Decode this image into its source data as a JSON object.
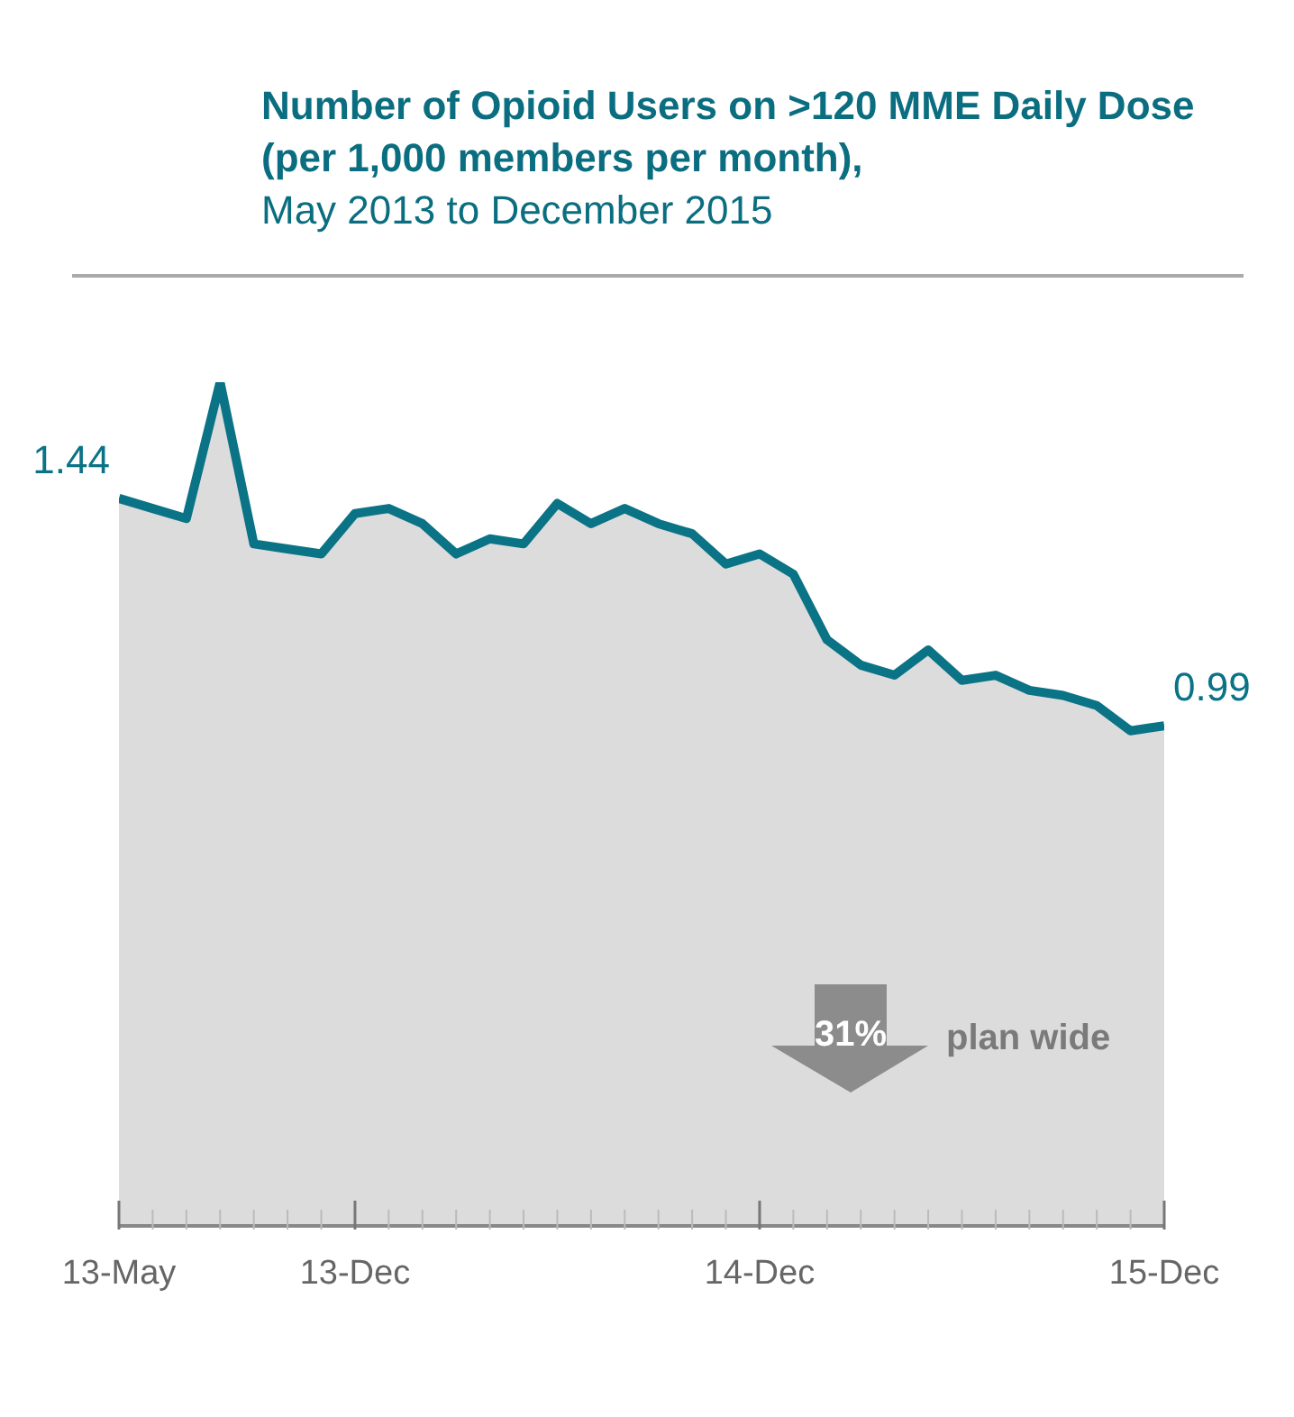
{
  "chart_data": {
    "type": "area",
    "title": "Number of Opioid Users on >120 MME Daily Dose (per 1,000 members per month),",
    "subtitle": "May 2013 to December 2015",
    "categories": [
      "13-May",
      null,
      null,
      null,
      null,
      null,
      null,
      "13-Dec",
      null,
      null,
      null,
      null,
      null,
      null,
      null,
      null,
      null,
      null,
      null,
      "14-Dec",
      null,
      null,
      null,
      null,
      null,
      null,
      null,
      null,
      null,
      null,
      null,
      "15-Dec"
    ],
    "series": [
      {
        "color": "#0a7386",
        "values": [
          1.44,
          1.42,
          1.4,
          1.67,
          1.35,
          1.34,
          1.33,
          1.41,
          1.42,
          1.39,
          1.33,
          1.36,
          1.35,
          1.43,
          1.39,
          1.42,
          1.39,
          1.37,
          1.31,
          1.33,
          1.29,
          1.16,
          1.11,
          1.09,
          1.14,
          1.08,
          1.09,
          1.06,
          1.05,
          1.03,
          0.98,
          0.99
        ],
        "value_labels": [
          "1.44",
          null,
          null,
          null,
          null,
          null,
          null,
          null,
          null,
          null,
          null,
          null,
          null,
          null,
          null,
          null,
          null,
          null,
          null,
          null,
          null,
          null,
          null,
          null,
          null,
          null,
          null,
          null,
          null,
          null,
          null,
          "0.99"
        ]
      }
    ],
    "annotations": [
      "31%",
      "plan wide"
    ]
  }
}
